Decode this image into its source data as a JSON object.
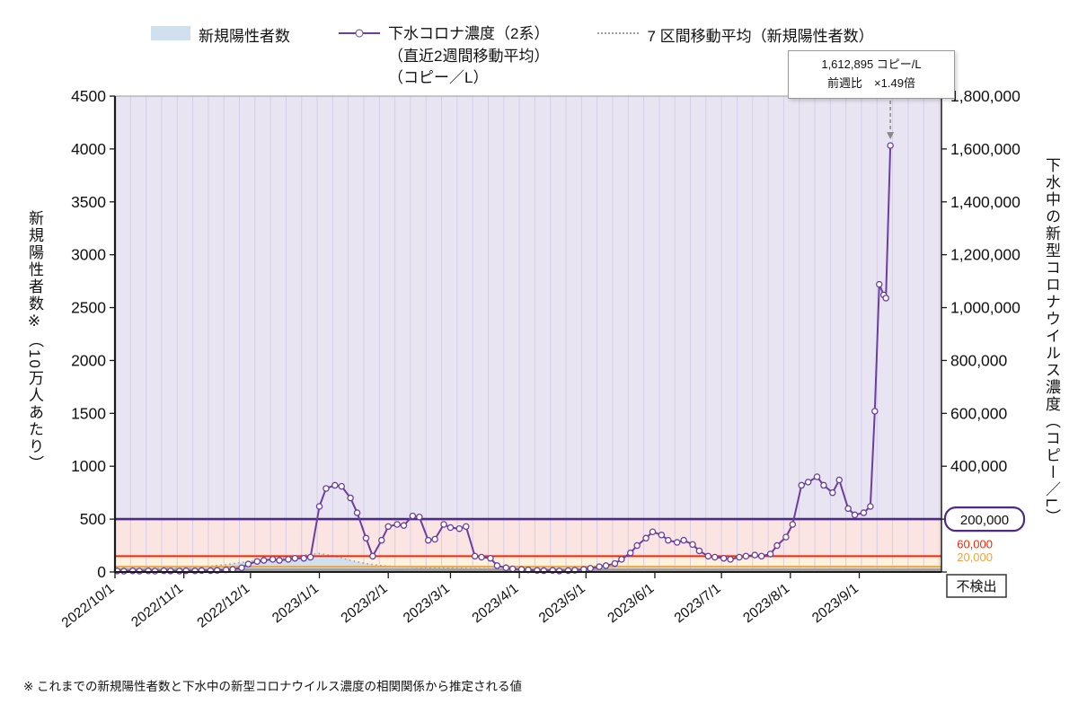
{
  "legend": {
    "items": [
      {
        "label": "新規陽性者数",
        "type": "area",
        "color": "#cfe0ee"
      },
      {
        "label": "下水コロナ濃度（2系）",
        "sublabel1": "（直近2週間移動平均）",
        "sublabel2": "（コピー／L）",
        "type": "line",
        "color": "#6b3fa0"
      },
      {
        "label": "7 区間移動平均（新規陽性者数）",
        "type": "dotted",
        "color": "#9e9e9e"
      }
    ]
  },
  "annotation": {
    "line1": "1,612,895 コピー/L",
    "line2": "前週比　×1.49倍"
  },
  "footnote": "※ これまでの新規陽性者数と下水中の新型コロナウイルス濃度の相関関係から推定される値",
  "chart_data": {
    "type": "line",
    "title": "",
    "x_domain": [
      "2022-10-01",
      "2023-10-08"
    ],
    "x_ticks": [
      {
        "date": "2022-10-01",
        "label": "2022/10/1"
      },
      {
        "date": "2022-11-01",
        "label": "2022/11/1"
      },
      {
        "date": "2022-12-01",
        "label": "2022/12/1"
      },
      {
        "date": "2023-01-01",
        "label": "2023/1/1"
      },
      {
        "date": "2023-02-01",
        "label": "2023/2/1"
      },
      {
        "date": "2023-03-01",
        "label": "2023/3/1"
      },
      {
        "date": "2023-04-01",
        "label": "2023/4/1"
      },
      {
        "date": "2023-05-01",
        "label": "2023/5/1"
      },
      {
        "date": "2023-06-01",
        "label": "2023/6/1"
      },
      {
        "date": "2023-07-01",
        "label": "2023/7/1"
      },
      {
        "date": "2023-08-01",
        "label": "2023/8/1"
      },
      {
        "date": "2023-09-01",
        "label": "2023/9/1"
      }
    ],
    "left_axis": {
      "label": "新規陽性者数※（10万人あたり）",
      "min": 0,
      "max": 4500,
      "step": 500
    },
    "right_axis": {
      "label": "下水中の新型コロナウイルス濃度（コピー／L）",
      "min": 0,
      "max": 1800000,
      "step": 200000,
      "skip_labels": [
        0,
        200000
      ]
    },
    "grid": {
      "interval_days": 7,
      "color": "#d6cde8"
    },
    "bands": [
      {
        "from": 0,
        "to": 20000,
        "color": "#ebebeb"
      },
      {
        "from": 20000,
        "to": 60000,
        "color": "#fdf1e0"
      },
      {
        "from": 60000,
        "to": 200000,
        "color": "#fbe5e2"
      },
      {
        "from": 200000,
        "to": 1800000,
        "color": "#e9e4f2"
      }
    ],
    "reference_lines": [
      {
        "value": 200000,
        "color": "#4c2a85",
        "width": 2.6,
        "label": "200,000",
        "label_style": "boxed-purple"
      },
      {
        "value": 60000,
        "color": "#ff2400",
        "width": 2,
        "label": "60,000",
        "label_style": "red-text"
      },
      {
        "value": 20000,
        "color": "#f2a33c",
        "width": 2,
        "label": "20,000",
        "label_style": "orange-text"
      },
      {
        "value": 0,
        "color": "#a0a0a0",
        "width": 3,
        "label": "不検出",
        "label_style": "boxed-gray"
      }
    ],
    "series": [
      {
        "name": "新規陽性者数",
        "axis": "left",
        "type": "area",
        "color": "#cfe0ee",
        "points": [
          [
            "2022-10-02",
            30
          ],
          [
            "2022-10-09",
            28
          ],
          [
            "2022-10-16",
            32
          ],
          [
            "2022-10-23",
            35
          ],
          [
            "2022-10-30",
            38
          ],
          [
            "2022-11-06",
            45
          ],
          [
            "2022-11-13",
            55
          ],
          [
            "2022-11-20",
            70
          ],
          [
            "2022-11-27",
            90
          ],
          [
            "2022-12-04",
            110
          ],
          [
            "2022-12-11",
            125
          ],
          [
            "2022-12-18",
            140
          ],
          [
            "2022-12-25",
            160
          ],
          [
            "2023-01-01",
            175
          ],
          [
            "2023-01-08",
            150
          ],
          [
            "2023-01-15",
            110
          ],
          [
            "2023-01-22",
            80
          ],
          [
            "2023-01-29",
            60
          ],
          [
            "2023-02-05",
            50
          ],
          [
            "2023-02-12",
            45
          ],
          [
            "2023-02-19",
            40
          ],
          [
            "2023-02-26",
            38
          ],
          [
            "2023-03-05",
            35
          ],
          [
            "2023-03-12",
            32
          ],
          [
            "2023-03-19",
            30
          ],
          [
            "2023-03-26",
            28
          ],
          [
            "2023-04-02",
            26
          ],
          [
            "2023-04-09",
            25
          ],
          [
            "2023-04-16",
            26
          ],
          [
            "2023-04-23",
            28
          ],
          [
            "2023-04-30",
            30
          ],
          [
            "2023-05-07",
            33
          ]
        ]
      },
      {
        "name": "7 区間移動平均（新規陽性者数）",
        "axis": "left",
        "type": "dotted-line",
        "color": "#9e9e9e",
        "points": [
          [
            "2022-10-02",
            30
          ],
          [
            "2022-10-09",
            28
          ],
          [
            "2022-10-16",
            32
          ],
          [
            "2022-10-23",
            35
          ],
          [
            "2022-10-30",
            38
          ],
          [
            "2022-11-06",
            45
          ],
          [
            "2022-11-13",
            55
          ],
          [
            "2022-11-20",
            70
          ],
          [
            "2022-11-27",
            90
          ],
          [
            "2022-12-04",
            110
          ],
          [
            "2022-12-11",
            125
          ],
          [
            "2022-12-18",
            140
          ],
          [
            "2022-12-25",
            160
          ],
          [
            "2023-01-01",
            175
          ],
          [
            "2023-01-08",
            150
          ],
          [
            "2023-01-15",
            110
          ],
          [
            "2023-01-22",
            80
          ],
          [
            "2023-01-29",
            60
          ],
          [
            "2023-02-05",
            50
          ],
          [
            "2023-02-12",
            45
          ],
          [
            "2023-02-19",
            40
          ],
          [
            "2023-02-26",
            38
          ],
          [
            "2023-03-05",
            35
          ],
          [
            "2023-03-12",
            32
          ],
          [
            "2023-03-19",
            30
          ],
          [
            "2023-03-26",
            28
          ],
          [
            "2023-04-02",
            26
          ],
          [
            "2023-04-09",
            25
          ],
          [
            "2023-04-16",
            26
          ],
          [
            "2023-04-23",
            28
          ],
          [
            "2023-04-30",
            30
          ],
          [
            "2023-05-07",
            33
          ]
        ]
      },
      {
        "name": "下水コロナ濃度（2系）",
        "axis": "right",
        "type": "line-markers",
        "color": "#6b3fa0",
        "points": [
          [
            "2022-10-02",
            4000
          ],
          [
            "2022-10-05",
            3200
          ],
          [
            "2022-10-09",
            4400
          ],
          [
            "2022-10-12",
            3600
          ],
          [
            "2022-10-16",
            4200
          ],
          [
            "2022-10-19",
            3400
          ],
          [
            "2022-10-23",
            4800
          ],
          [
            "2022-10-26",
            4000
          ],
          [
            "2022-10-30",
            3600
          ],
          [
            "2022-11-02",
            4600
          ],
          [
            "2022-11-06",
            4200
          ],
          [
            "2022-11-09",
            5400
          ],
          [
            "2022-11-13",
            5000
          ],
          [
            "2022-11-16",
            6200
          ],
          [
            "2022-11-20",
            8000
          ],
          [
            "2022-11-23",
            10000
          ],
          [
            "2022-11-27",
            16000
          ],
          [
            "2022-11-30",
            30000
          ],
          [
            "2022-12-04",
            40000
          ],
          [
            "2022-12-07",
            44000
          ],
          [
            "2022-12-11",
            48000
          ],
          [
            "2022-12-14",
            44000
          ],
          [
            "2022-12-18",
            48000
          ],
          [
            "2022-12-21",
            52000
          ],
          [
            "2022-12-25",
            52000
          ],
          [
            "2022-12-28",
            56000
          ],
          [
            "2023-01-01",
            248000
          ],
          [
            "2023-01-04",
            316000
          ],
          [
            "2023-01-08",
            328000
          ],
          [
            "2023-01-11",
            324000
          ],
          [
            "2023-01-15",
            280000
          ],
          [
            "2023-01-18",
            224000
          ],
          [
            "2023-01-22",
            128000
          ],
          [
            "2023-01-25",
            60000
          ],
          [
            "2023-01-29",
            120000
          ],
          [
            "2023-02-01",
            172000
          ],
          [
            "2023-02-05",
            180000
          ],
          [
            "2023-02-08",
            176000
          ],
          [
            "2023-02-12",
            212000
          ],
          [
            "2023-02-15",
            208000
          ],
          [
            "2023-02-19",
            120000
          ],
          [
            "2023-02-22",
            124000
          ],
          [
            "2023-02-26",
            180000
          ],
          [
            "2023-03-01",
            168000
          ],
          [
            "2023-03-05",
            164000
          ],
          [
            "2023-03-08",
            172000
          ],
          [
            "2023-03-12",
            60000
          ],
          [
            "2023-03-15",
            56000
          ],
          [
            "2023-03-19",
            52000
          ],
          [
            "2023-03-22",
            24000
          ],
          [
            "2023-03-26",
            16000
          ],
          [
            "2023-03-29",
            12000
          ],
          [
            "2023-04-02",
            10000
          ],
          [
            "2023-04-05",
            8000
          ],
          [
            "2023-04-09",
            6000
          ],
          [
            "2023-04-12",
            5000
          ],
          [
            "2023-04-16",
            6000
          ],
          [
            "2023-04-19",
            4000
          ],
          [
            "2023-04-23",
            5000
          ],
          [
            "2023-04-26",
            7000
          ],
          [
            "2023-04-30",
            10000
          ],
          [
            "2023-05-03",
            14000
          ],
          [
            "2023-05-07",
            20000
          ],
          [
            "2023-05-10",
            24000
          ],
          [
            "2023-05-14",
            32000
          ],
          [
            "2023-05-17",
            48000
          ],
          [
            "2023-05-21",
            72000
          ],
          [
            "2023-05-24",
            100000
          ],
          [
            "2023-05-28",
            128000
          ],
          [
            "2023-05-31",
            152000
          ],
          [
            "2023-06-04",
            140000
          ],
          [
            "2023-06-07",
            120000
          ],
          [
            "2023-06-11",
            112000
          ],
          [
            "2023-06-14",
            120000
          ],
          [
            "2023-06-18",
            104000
          ],
          [
            "2023-06-21",
            80000
          ],
          [
            "2023-06-25",
            60000
          ],
          [
            "2023-06-28",
            56000
          ],
          [
            "2023-07-02",
            52000
          ],
          [
            "2023-07-05",
            48000
          ],
          [
            "2023-07-09",
            56000
          ],
          [
            "2023-07-12",
            60000
          ],
          [
            "2023-07-16",
            64000
          ],
          [
            "2023-07-19",
            60000
          ],
          [
            "2023-07-23",
            68000
          ],
          [
            "2023-07-26",
            100000
          ],
          [
            "2023-07-30",
            132000
          ],
          [
            "2023-08-02",
            180000
          ],
          [
            "2023-08-06",
            328000
          ],
          [
            "2023-08-09",
            340000
          ],
          [
            "2023-08-13",
            360000
          ],
          [
            "2023-08-16",
            328000
          ],
          [
            "2023-08-20",
            300000
          ],
          [
            "2023-08-23",
            348000
          ],
          [
            "2023-08-27",
            240000
          ],
          [
            "2023-08-30",
            216000
          ],
          [
            "2023-09-03",
            224000
          ],
          [
            "2023-09-06",
            248000
          ],
          [
            "2023-09-08",
            608000
          ],
          [
            "2023-09-10",
            1088000
          ],
          [
            "2023-09-12",
            1048000
          ],
          [
            "2023-09-13",
            1036000
          ],
          [
            "2023-09-15",
            1612895
          ]
        ]
      }
    ],
    "annotation_target": {
      "date": "2023-09-15",
      "value": 1612895
    }
  }
}
